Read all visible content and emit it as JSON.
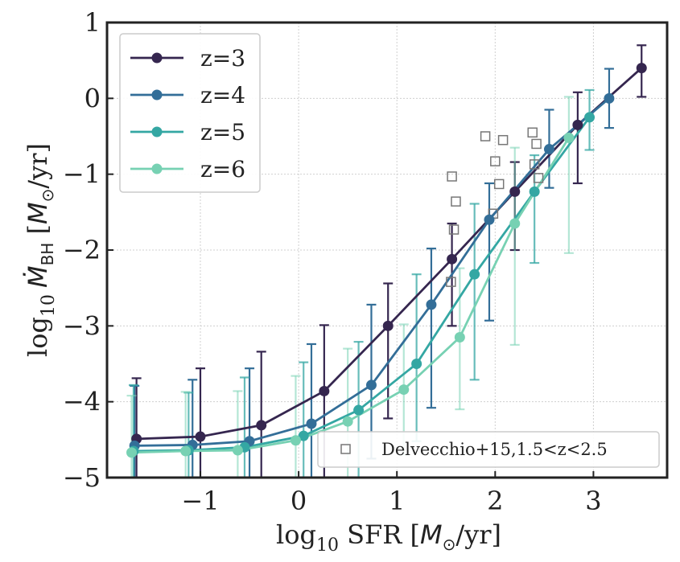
{
  "chart_data": {
    "type": "line",
    "xlabel": "log10 SFR [M⊙/yr]",
    "ylabel": "log10 Ṁ_BH [M⊙/yr]",
    "xlabel_parts": {
      "log": "log",
      "sub": "10",
      "sfr": " SFR [",
      "m": "M",
      "sun": "⊙",
      "unit": "/yr]"
    },
    "ylabel_parts": {
      "log": "log",
      "sub": "10",
      "mdot": "Ṁ",
      "bh": "BH",
      "bracket": " [",
      "m": "M",
      "sun": "⊙",
      "unit": "/yr]"
    },
    "xlim": [
      -1.95,
      3.75
    ],
    "ylim": [
      -5,
      1
    ],
    "xticks": [
      -1,
      0,
      1,
      2,
      3
    ],
    "xtick_labels": [
      "−1",
      "0",
      "1",
      "2",
      "3"
    ],
    "yticks": [
      -5,
      -4,
      -3,
      -2,
      -1,
      0,
      1
    ],
    "ytick_labels": [
      "−5",
      "−4",
      "−3",
      "−2",
      "−1",
      "0",
      "1"
    ],
    "grid": true,
    "legend_position": "upper-left",
    "series": [
      {
        "name": "z=3",
        "color": "#35264f",
        "x": [
          -1.65,
          -1.0,
          -0.38,
          0.26,
          0.91,
          1.56,
          2.2,
          2.84,
          3.49
        ],
        "y": [
          -4.49,
          -4.46,
          -4.31,
          -3.86,
          -3.0,
          -2.12,
          -1.23,
          -0.35,
          0.4
        ],
        "err_low": [
          0.51,
          0.54,
          0.69,
          1.14,
          1.22,
          0.88,
          0.77,
          0.77,
          0.38
        ],
        "err_high": [
          0.8,
          0.9,
          0.97,
          0.87,
          0.56,
          0.47,
          0.39,
          0.43,
          0.3
        ]
      },
      {
        "name": "z=4",
        "color": "#336e98",
        "x": [
          -1.67,
          -1.08,
          -0.5,
          0.13,
          0.74,
          1.35,
          1.94,
          2.55,
          3.16
        ],
        "y": [
          -4.58,
          -4.57,
          -4.52,
          -4.29,
          -3.78,
          -2.72,
          -1.6,
          -0.67,
          0.0
        ],
        "err_low": [
          0.42,
          0.43,
          0.48,
          0.71,
          0.97,
          1.36,
          1.33,
          0.51,
          0.39
        ],
        "err_high": [
          0.79,
          0.86,
          0.96,
          1.05,
          1.06,
          0.74,
          0.48,
          0.52,
          0.39
        ]
      },
      {
        "name": "z=5",
        "color": "#34a7a3",
        "x": [
          -1.68,
          -1.12,
          -0.55,
          0.05,
          0.61,
          1.2,
          1.79,
          2.4,
          2.96
        ],
        "y": [
          -4.65,
          -4.64,
          -4.6,
          -4.45,
          -4.11,
          -3.5,
          -2.32,
          -1.23,
          -0.25
        ],
        "err_low": [
          0.35,
          0.36,
          0.4,
          0.55,
          0.89,
          1.02,
          1.39,
          0.94,
          0.43
        ],
        "err_high": [
          0.87,
          0.76,
          0.92,
          0.97,
          0.9,
          1.18,
          0.93,
          0.48,
          0.36
        ]
      },
      {
        "name": "z=6",
        "color": "#77d1b3",
        "x": [
          -1.7,
          -1.15,
          -0.62,
          -0.03,
          0.5,
          1.07,
          1.64,
          2.2,
          2.75
        ],
        "y": [
          -4.67,
          -4.65,
          -4.64,
          -4.51,
          -4.26,
          -3.84,
          -3.15,
          -1.65,
          -0.52
        ],
        "err_low": [
          0.33,
          0.35,
          0.36,
          0.49,
          0.74,
          0.86,
          0.95,
          1.6,
          1.52
        ],
        "err_high": [
          0.75,
          0.78,
          0.78,
          0.85,
          0.96,
          0.86,
          0.91,
          1.0,
          0.54
        ]
      }
    ],
    "comparison": {
      "name": "Delvecchio+15,1.5<z<2.5",
      "color": "#777777",
      "x": [
        1.56,
        1.6,
        1.58,
        1.55,
        1.9,
        2.0,
        1.98,
        2.04,
        2.08,
        2.38,
        2.42,
        2.4,
        2.44
      ],
      "y": [
        -1.03,
        -1.36,
        -1.73,
        -2.42,
        -0.5,
        -0.83,
        -1.52,
        -1.13,
        -0.55,
        -0.45,
        -0.6,
        -0.87,
        -1.05
      ]
    }
  }
}
